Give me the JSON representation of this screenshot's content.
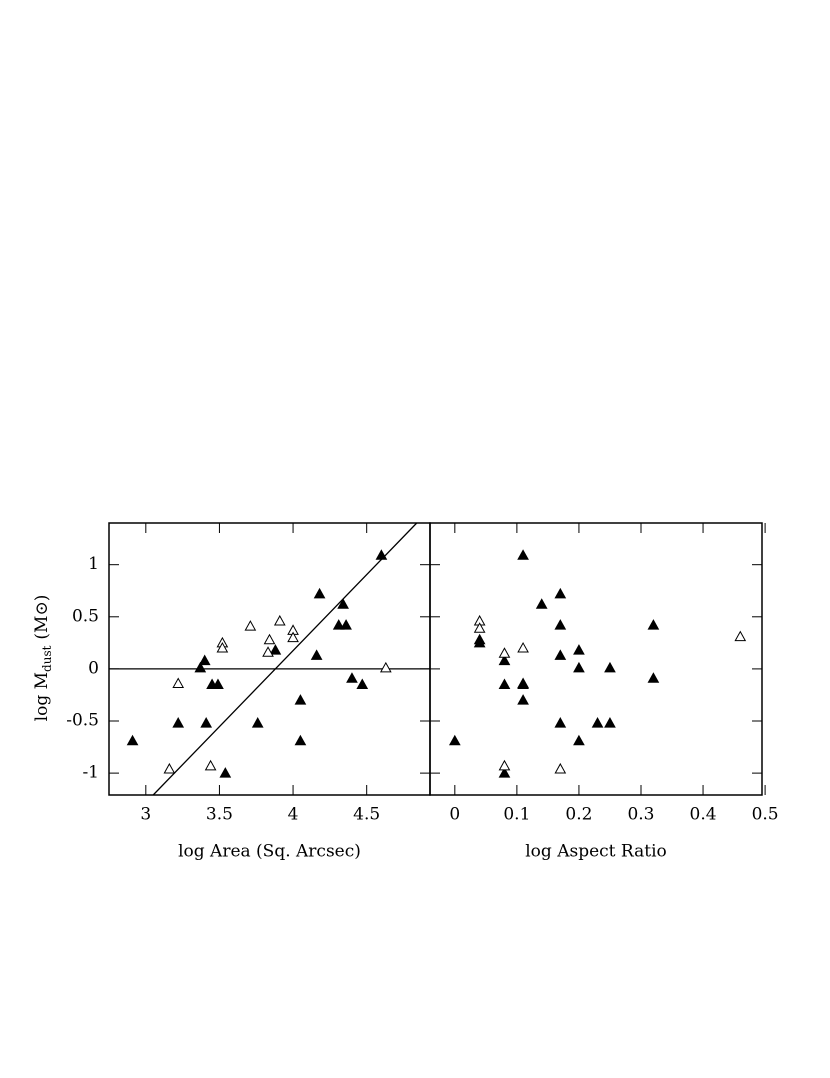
{
  "chart_data": [
    {
      "type": "scatter",
      "xlabel": "log Area (Sq. Arcsec)",
      "ylabel": {
        "main": "log M",
        "sub": "dust",
        "unit": "(M⊙)"
      },
      "xlim": [
        2.75,
        4.93
      ],
      "xticks": [
        3,
        3.5,
        4,
        4.5
      ],
      "ylim": [
        -1.21,
        1.4
      ],
      "yticks": [
        -1,
        -0.5,
        0,
        0.5,
        1
      ],
      "show_ytick_labels": true,
      "series": [
        {
          "marker": "filled",
          "color": "#000000",
          "x": [
            2.91,
            3.22,
            3.41,
            3.4,
            3.37,
            3.45,
            3.49,
            3.54,
            3.76,
            3.88,
            4.05,
            4.05,
            4.16,
            4.18,
            4.34,
            4.31,
            4.36,
            4.4,
            4.47,
            4.6
          ],
          "values": [
            -0.69,
            -0.52,
            -0.52,
            0.08,
            0.01,
            -0.15,
            -0.15,
            -1.0,
            -0.52,
            0.18,
            -0.3,
            -0.69,
            0.13,
            0.72,
            0.62,
            0.42,
            0.42,
            -0.09,
            -0.15,
            1.09
          ]
        },
        {
          "marker": "open",
          "color": "#000000",
          "x": [
            3.16,
            3.22,
            3.44,
            3.52,
            3.52,
            3.71,
            3.84,
            3.83,
            3.91,
            4.0,
            4.0,
            4.63
          ],
          "values": [
            -0.96,
            -0.14,
            -0.93,
            0.25,
            0.2,
            0.41,
            0.28,
            0.16,
            0.46,
            0.37,
            0.3,
            0.01
          ]
        }
      ],
      "lines": [
        {
          "x": [
            3.05,
            4.84
          ],
          "y": [
            -1.21,
            1.4
          ]
        },
        {
          "x": [
            2.75,
            4.93
          ],
          "y": [
            0,
            0
          ]
        }
      ]
    },
    {
      "type": "scatter",
      "xlabel": "log Aspect Ratio",
      "xlim": [
        -0.04,
        0.495
      ],
      "xticks": [
        0,
        0.1,
        0.2,
        0.3,
        0.4,
        0.5
      ],
      "ylim": [
        -1.21,
        1.4
      ],
      "yticks": [
        -1,
        -0.5,
        0,
        0.5,
        1
      ],
      "show_ytick_labels": false,
      "series": [
        {
          "marker": "filled",
          "color": "#000000",
          "x": [
            0,
            0.04,
            0.04,
            0.08,
            0.08,
            0.08,
            0.11,
            0.11,
            0.11,
            0.11,
            0.14,
            0.17,
            0.17,
            0.17,
            0.17,
            0.2,
            0.2,
            0.2,
            0.23,
            0.25,
            0.25,
            0.32,
            0.32
          ],
          "values": [
            -0.69,
            0.28,
            0.25,
            0.08,
            -0.15,
            -1.0,
            1.09,
            -0.15,
            -0.14,
            -0.3,
            0.62,
            0.72,
            0.42,
            0.13,
            -0.52,
            0.18,
            0.01,
            -0.69,
            -0.52,
            -0.52,
            0.01,
            0.42,
            -0.09
          ]
        },
        {
          "marker": "open",
          "color": "#000000",
          "x": [
            0.04,
            0.04,
            0.08,
            0.08,
            0.11,
            0.17,
            0.46
          ],
          "values": [
            0.46,
            0.39,
            0.15,
            -0.93,
            0.2,
            -0.96,
            0.31
          ]
        }
      ]
    }
  ]
}
